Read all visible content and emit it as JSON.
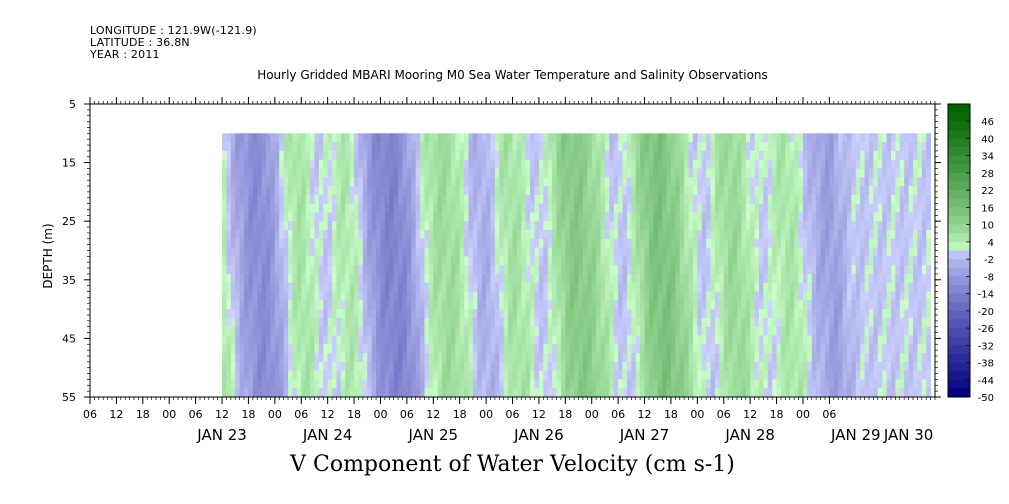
{
  "header": {
    "longitude": "LONGITUDE : 121.9W(-121.9)",
    "latitude": "LATITUDE : 36.8N",
    "year": "YEAR : 2011"
  },
  "chart_data": {
    "type": "heatmap",
    "title": "Hourly Gridded MBARI Mooring M0 Sea Water Temperature and Salinity Observations",
    "subtitle": "V Component of Water Velocity (cm s-1)",
    "ylabel": "DEPTH (m)",
    "y_ticks": [
      5,
      15,
      25,
      35,
      45,
      55
    ],
    "y_range": [
      5,
      55
    ],
    "y_inverted": true,
    "data_depth_range": [
      10,
      55
    ],
    "x_range_hours": [
      "JAN 22 06",
      "JAN 30 06"
    ],
    "data_time_range": [
      "JAN 23 12",
      "JAN 30 06"
    ],
    "x_hour_ticks": [
      "06",
      "12",
      "18",
      "00",
      "06",
      "12",
      "18",
      "00",
      "06",
      "12",
      "18",
      "00",
      "06",
      "12",
      "18",
      "00",
      "06",
      "12",
      "18",
      "00",
      "06",
      "12",
      "18",
      "00",
      "06",
      "12",
      "18",
      "00",
      "06"
    ],
    "x_day_labels": [
      {
        "label": "JAN 23",
        "hour": 12
      },
      {
        "label": "JAN 24",
        "hour": 12
      },
      {
        "label": "JAN 25",
        "hour": 12
      },
      {
        "label": "JAN 26",
        "hour": 12
      },
      {
        "label": "JAN 27",
        "hour": 12
      },
      {
        "label": "JAN 28",
        "hour": 12
      },
      {
        "label": "JAN 29",
        "hour": 12
      },
      {
        "label": "JAN 30",
        "hour": 0
      }
    ],
    "colorbar_levels": [
      46,
      40,
      34,
      28,
      22,
      16,
      10,
      4,
      -2,
      -8,
      -14,
      -20,
      -26,
      -32,
      -38,
      -44,
      -50
    ],
    "colorbar_range": [
      -50,
      52
    ],
    "colorbar_step": 3,
    "colors": {
      "positive_low": "#ccffcc",
      "positive_high": "#006400",
      "negative_low": "#d0d4ff",
      "negative_high": "#000080",
      "frame": "#000000"
    },
    "pattern_summary": "Alternating bands of weak northward (green, ~4-16 cm/s) and southward (blue, ~-2 to -20 cm/s) flow through the full depth, with roughly half-day periodicity.",
    "band_centers_hours": [
      {
        "t": 8,
        "v": -12
      },
      {
        "t": 14,
        "v": 12
      },
      {
        "t": 20,
        "v": -10
      },
      {
        "t": 27,
        "v": 14
      },
      {
        "t": 33,
        "v": -10
      },
      {
        "t": 40,
        "v": -14
      },
      {
        "t": 46,
        "v": 14
      },
      {
        "t": 52,
        "v": -8
      },
      {
        "t": 57,
        "v": 12
      },
      {
        "t": 64,
        "v": -12
      },
      {
        "t": 70,
        "v": -16
      },
      {
        "t": 76,
        "v": 8
      },
      {
        "t": 82,
        "v": 10
      },
      {
        "t": 88,
        "v": -10
      },
      {
        "t": 95,
        "v": 12
      },
      {
        "t": 101,
        "v": -6
      },
      {
        "t": 108,
        "v": 16
      },
      {
        "t": 114,
        "v": 10
      },
      {
        "t": 120,
        "v": -8
      },
      {
        "t": 126,
        "v": 18
      },
      {
        "t": 132,
        "v": 14
      },
      {
        "t": 138,
        "v": -6
      },
      {
        "t": 145,
        "v": 14
      },
      {
        "t": 151,
        "v": -4
      },
      {
        "t": 158,
        "v": 10
      },
      {
        "t": 164,
        "v": -8
      }
    ]
  }
}
